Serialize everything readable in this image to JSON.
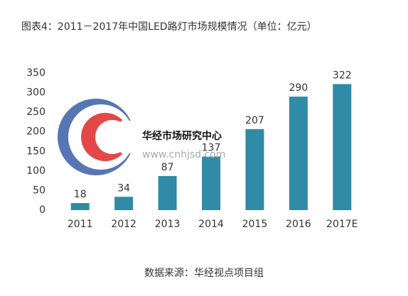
{
  "chart_data": {
    "type": "bar",
    "title": "图表4：2011－2017年中国LED路灯市场规模情况（单位：亿元）",
    "categories": [
      "2011",
      "2012",
      "2013",
      "2014",
      "2015",
      "2016",
      "2017E"
    ],
    "values": [
      18,
      34,
      87,
      137,
      207,
      290,
      322
    ],
    "color": "#2f8ba6",
    "ylim": [
      0,
      350
    ],
    "yticks": [
      0,
      50,
      100,
      150,
      200,
      250,
      300,
      350
    ],
    "grid": false,
    "source": "数据来源：华经视点项目组"
  },
  "watermark": {
    "name": "华经市场研究中心",
    "url": "www.cnhjsd.com"
  }
}
